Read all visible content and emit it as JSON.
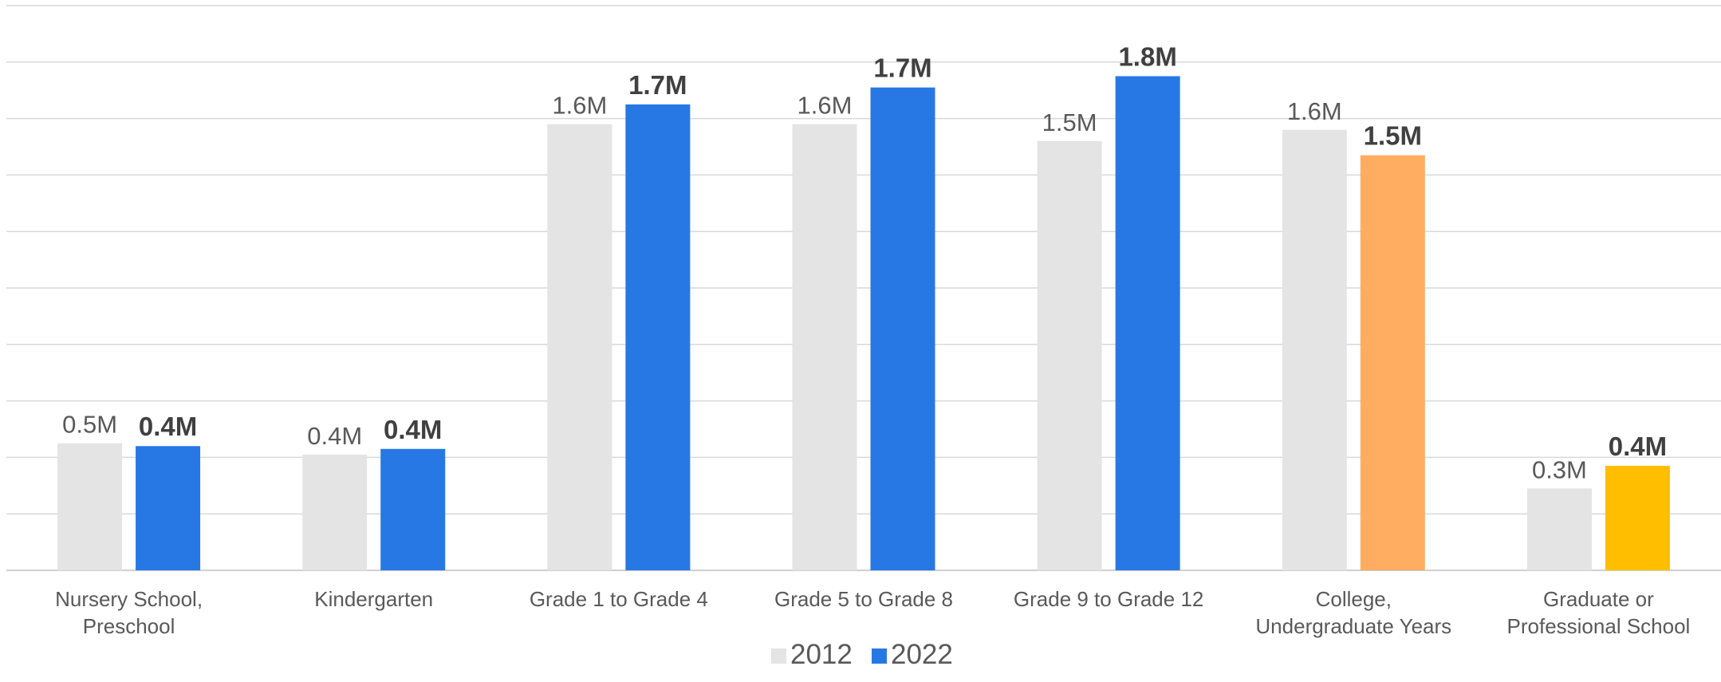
{
  "chart_data": {
    "type": "bar",
    "title": "",
    "xlabel": "",
    "ylabel": "",
    "ylim": [
      0,
      2.0
    ],
    "grid": true,
    "legend_position": "bottom",
    "categories": [
      [
        "Nursery School,",
        "Preschool"
      ],
      [
        "Kindergarten"
      ],
      [
        "Grade 1 to Grade 4"
      ],
      [
        "Grade 5 to Grade 8"
      ],
      [
        "Grade 9 to Grade 12"
      ],
      [
        "College,",
        "Undergraduate Years"
      ],
      [
        "Graduate or",
        "Professional School"
      ]
    ],
    "series": [
      {
        "name": "2012",
        "color": "#e4e4e4",
        "values": [
          0.45,
          0.41,
          1.58,
          1.58,
          1.52,
          1.56,
          0.29
        ],
        "labels": [
          "0.5M",
          "0.4M",
          "1.6M",
          "1.6M",
          "1.5M",
          "1.6M",
          "0.3M"
        ],
        "label_bold": false
      },
      {
        "name": "2022",
        "color": "#2778e4",
        "values": [
          0.44,
          0.43,
          1.65,
          1.71,
          1.75,
          1.47,
          0.37
        ],
        "labels": [
          "0.4M",
          "0.4M",
          "1.7M",
          "1.7M",
          "1.8M",
          "1.5M",
          "0.4M"
        ],
        "label_bold": true,
        "point_colors": [
          "#2778e4",
          "#2778e4",
          "#2778e4",
          "#2778e4",
          "#2778e4",
          "#ffad61",
          "#ffbf00"
        ]
      }
    ]
  }
}
